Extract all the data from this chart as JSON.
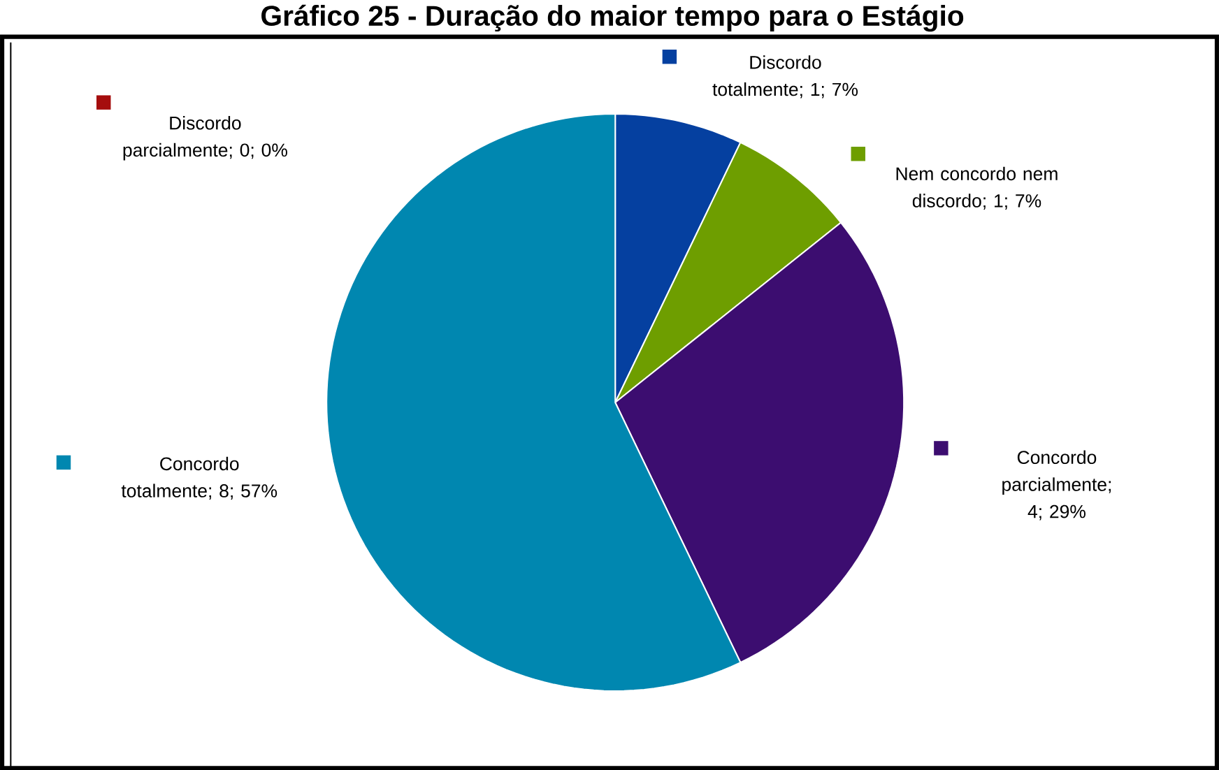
{
  "chart_data": {
    "type": "pie",
    "title": "Gráfico 25 - Duração do maior tempo para o Estágio",
    "categories": [
      "Discordo totalmente",
      "Discordo parcialmente",
      "Nem concordo nem discordo",
      "Concordo parcialmente",
      "Concordo totalmente"
    ],
    "values": [
      1,
      0,
      1,
      4,
      8
    ],
    "value_labels": [
      "; 1; 7%",
      "; 0; 0%",
      "; 1; 7%",
      "; 4; 29%",
      "; 8; 57%"
    ],
    "colors": [
      "#0540a0",
      "#a50d0d",
      "#6e9e00",
      "#3c0d70",
      "#0087b0"
    ]
  }
}
